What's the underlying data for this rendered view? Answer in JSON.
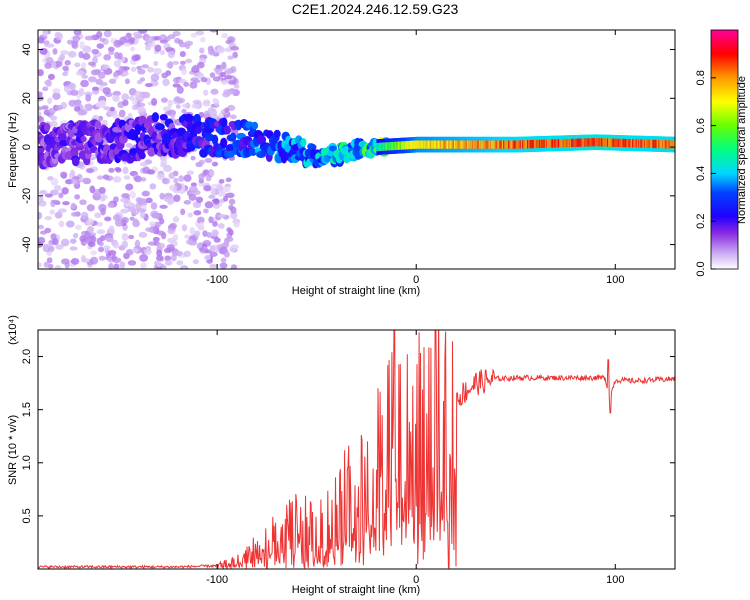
{
  "title": "C2E1.2024.246.12.59.G23",
  "chart_data": [
    {
      "type": "heatmap",
      "xlabel": "Height of straight line (km)",
      "ylabel": "Frequency (Hz)",
      "xlim": [
        -190,
        130
      ],
      "ylim": [
        -50,
        48
      ],
      "xticks": [
        -100,
        0,
        100
      ],
      "yticks": [
        -40,
        -20,
        0,
        20,
        40
      ],
      "colorbar": {
        "label": "Normalized spectral amplitude",
        "ticks": [
          "0.0",
          "0.2",
          "0.4",
          "0.6",
          "0.8"
        ],
        "range": [
          0,
          1
        ],
        "colormap": [
          "#ffffff",
          "#c7a6f2",
          "#8a2be2",
          "#5500cc",
          "#0000ff",
          "#00d8ff",
          "#00ff80",
          "#55ff00",
          "#ffff00",
          "#ff9900",
          "#ff0000",
          "#ff0099"
        ]
      },
      "description_points": [
        {
          "x": -190,
          "freq_center": 0,
          "freq_spread": 8,
          "amplitude": 0.15
        },
        {
          "x": -120,
          "freq_center": 5,
          "freq_spread": 8,
          "amplitude": 0.2
        },
        {
          "x": -80,
          "freq_center": 3,
          "freq_spread": 6,
          "amplitude": 0.3
        },
        {
          "x": -50,
          "freq_center": -4,
          "freq_spread": 4,
          "amplitude": 0.35
        },
        {
          "x": -20,
          "freq_center": 0,
          "freq_spread": 3,
          "amplitude": 0.5
        },
        {
          "x": 0,
          "freq_center": 1,
          "freq_spread": 2,
          "amplitude": 0.8
        },
        {
          "x": 50,
          "freq_center": 1,
          "freq_spread": 2,
          "amplitude": 0.9
        },
        {
          "x": 90,
          "freq_center": 2,
          "freq_spread": 3,
          "amplitude": 0.95
        },
        {
          "x": 130,
          "freq_center": 1,
          "freq_spread": 2,
          "amplitude": 0.9
        }
      ]
    },
    {
      "type": "line",
      "xlabel": "Height of straight line (km)",
      "ylabel": "SNR (10 * v/v)",
      "yscale_label": "(x10⁴)",
      "xlim": [
        -190,
        130
      ],
      "ylim": [
        0,
        2.25
      ],
      "xticks": [
        -100,
        0,
        100
      ],
      "yticks": [
        0.5,
        1.0,
        1.5,
        2.0
      ],
      "ytick_labels": [
        "0.5",
        "1.0",
        "1.5",
        "2.0"
      ],
      "color": "#ee3333",
      "series": [
        {
          "x": [
            -190,
            -120,
            -100,
            -90,
            -80,
            -70,
            -60,
            -50,
            -40,
            -35,
            -30,
            -25,
            -20,
            -15,
            -12,
            -10,
            -5,
            0,
            10,
            20,
            30,
            40,
            50,
            60,
            80,
            95,
            97,
            100,
            110,
            120,
            130
          ],
          "y": [
            0.02,
            0.02,
            0.03,
            0.08,
            0.2,
            0.35,
            0.45,
            0.35,
            0.55,
            0.7,
            0.8,
            0.9,
            1.0,
            1.1,
            1.5,
            1.3,
            1.2,
            1.3,
            1.45,
            1.6,
            1.75,
            1.79,
            1.8,
            1.8,
            1.8,
            1.8,
            1.6,
            1.78,
            1.77,
            1.78,
            1.79
          ]
        }
      ]
    }
  ]
}
